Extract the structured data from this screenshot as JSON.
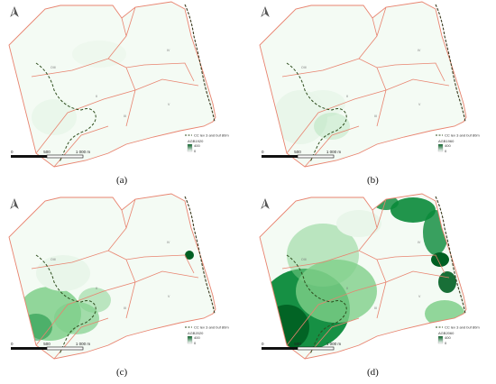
{
  "panels": [
    {
      "id": "a",
      "caption": "(a)",
      "legend_line": "CC lev 3 and buf 80m",
      "legend_layer": "AGB1920",
      "legend_max": "400",
      "legend_min": "0",
      "scale_labels": [
        "0",
        "500",
        "1 000 m"
      ],
      "zone_labels": [
        "OIII",
        "II",
        "III",
        "IV",
        "V"
      ]
    },
    {
      "id": "b",
      "caption": "(b)",
      "legend_line": "CC lev 3 and buf 80m",
      "legend_layer": "AGB1960",
      "legend_max": "400",
      "legend_min": "0",
      "scale_labels": [
        "0",
        "500",
        "1 000 m"
      ],
      "zone_labels": [
        "OIII",
        "II",
        "III",
        "IV",
        "V"
      ]
    },
    {
      "id": "c",
      "caption": "(c)",
      "legend_line": "CC lev 3 and buf 80m",
      "legend_layer": "AGB2020",
      "legend_max": "400",
      "legend_min": "0",
      "scale_labels": [
        "0",
        "500",
        "1 000 m"
      ],
      "zone_labels": [
        "OIII",
        "II",
        "III",
        "IV",
        "V"
      ]
    },
    {
      "id": "d",
      "caption": "(d)",
      "legend_line": "CC lev 3 and buf 80m",
      "legend_layer": "AGB2060",
      "legend_max": "400",
      "legend_min": "0",
      "scale_labels": [
        "0",
        "500",
        "1 000 m"
      ],
      "zone_labels": [
        "OIII",
        "II",
        "III",
        "IV",
        "V"
      ]
    }
  ],
  "colors": {
    "boundary": "#e8836f",
    "dashed_line": "#2f4f1f",
    "coast_line": "#3b3b1f",
    "green_light": "#e9f6ea",
    "green_mid": "#7fcf8a",
    "green_dark": "#0a8a3a",
    "green_darkest": "#005f22"
  },
  "icons": {
    "north_arrow": "north-arrow-icon"
  }
}
